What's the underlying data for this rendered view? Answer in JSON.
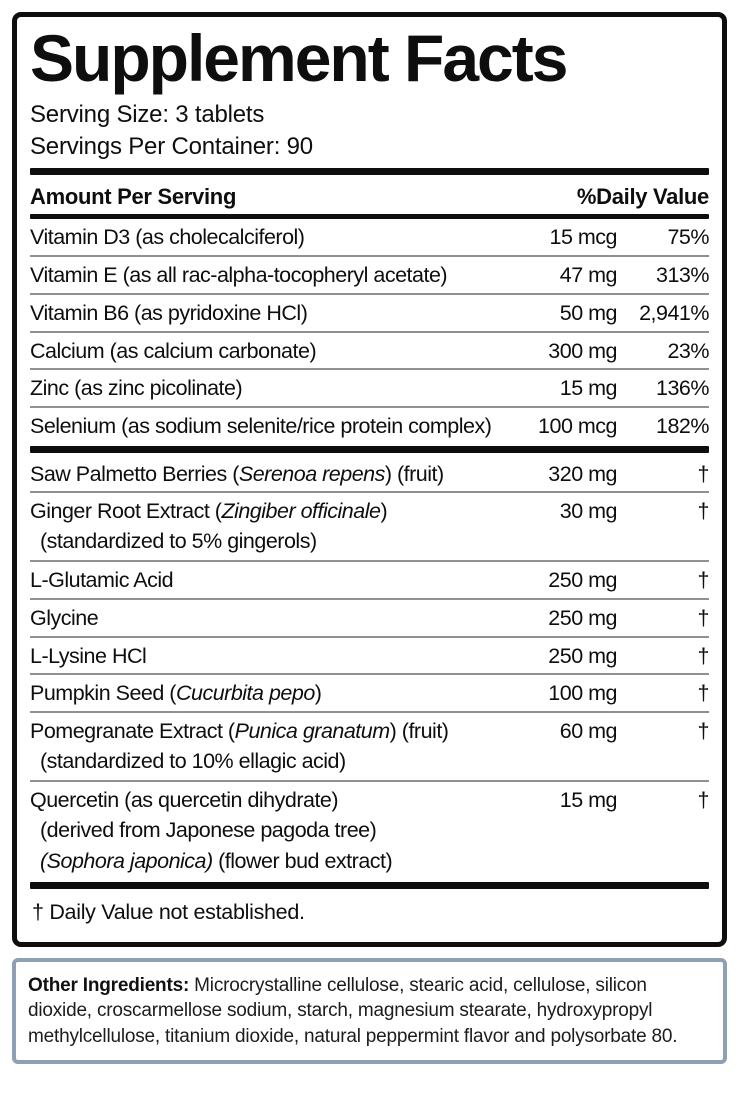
{
  "colors": {
    "ink": "#0e0e0e",
    "separator": "#7d7d7d",
    "footer_border": "#8fa0b4"
  },
  "label": {
    "title": "Supplement Facts",
    "serving_size": "Serving Size: 3 tablets",
    "servings_per_container": "Servings Per Container: 90",
    "columns": {
      "amount_header": "Amount Per Serving",
      "dv_header": "%Daily Value"
    },
    "rows": [
      {
        "name": [
          {
            "t": "Vitamin D3 (as cholecalciferol)"
          }
        ],
        "amount": "15 mcg",
        "dv": "75%",
        "subs": [],
        "sep_after": "thin"
      },
      {
        "name": [
          {
            "t": "Vitamin E (as all rac-alpha-tocopheryl acetate)"
          }
        ],
        "amount": "47 mg",
        "dv": "313%",
        "subs": [],
        "sep_after": "thin"
      },
      {
        "name": [
          {
            "t": "Vitamin B6 (as pyridoxine HCl)"
          }
        ],
        "amount": "50 mg",
        "dv": "2,941%",
        "subs": [],
        "sep_after": "thin"
      },
      {
        "name": [
          {
            "t": "Calcium (as calcium carbonate)"
          }
        ],
        "amount": "300 mg",
        "dv": "23%",
        "subs": [],
        "sep_after": "thin"
      },
      {
        "name": [
          {
            "t": "Zinc (as zinc picolinate)"
          }
        ],
        "amount": "15 mg",
        "dv": "136%",
        "subs": [],
        "sep_after": "thin"
      },
      {
        "name": [
          {
            "t": "Selenium (as sodium selenite/rice protein complex)"
          }
        ],
        "amount": "100 mcg",
        "dv": "182%",
        "subs": [],
        "sep_after": "thick"
      },
      {
        "name": [
          {
            "t": "Saw Palmetto Berries ("
          },
          {
            "t": "Serenoa repens",
            "i": true
          },
          {
            "t": ") (fruit)"
          }
        ],
        "amount": "320 mg",
        "dv": "†",
        "subs": [],
        "sep_after": "thin"
      },
      {
        "name": [
          {
            "t": "Ginger Root Extract ("
          },
          {
            "t": "Zingiber officinale",
            "i": true
          },
          {
            "t": ")"
          }
        ],
        "amount": "30 mg",
        "dv": "†",
        "subs": [
          [
            {
              "t": "(standardized to 5% gingerols)"
            }
          ]
        ],
        "sep_after": "thin"
      },
      {
        "name": [
          {
            "t": "L-Glutamic Acid"
          }
        ],
        "amount": "250 mg",
        "dv": "†",
        "subs": [],
        "sep_after": "thin"
      },
      {
        "name": [
          {
            "t": "Glycine"
          }
        ],
        "amount": "250 mg",
        "dv": "†",
        "subs": [],
        "sep_after": "thin"
      },
      {
        "name": [
          {
            "t": "L-Lysine HCl"
          }
        ],
        "amount": "250 mg",
        "dv": "†",
        "subs": [],
        "sep_after": "thin"
      },
      {
        "name": [
          {
            "t": "Pumpkin Seed ("
          },
          {
            "t": "Cucurbita pepo",
            "i": true
          },
          {
            "t": ")"
          }
        ],
        "amount": "100 mg",
        "dv": "†",
        "subs": [],
        "sep_after": "thin"
      },
      {
        "name": [
          {
            "t": "Pomegranate Extract ("
          },
          {
            "t": "Punica granatum",
            "i": true
          },
          {
            "t": ") (fruit)"
          }
        ],
        "amount": "60 mg",
        "dv": "†",
        "subs": [
          [
            {
              "t": "(standardized to 10% ellagic acid)"
            }
          ]
        ],
        "sep_after": "thin"
      },
      {
        "name": [
          {
            "t": "Quercetin (as quercetin dihydrate)"
          }
        ],
        "amount": "15 mg",
        "dv": "†",
        "subs": [
          [
            {
              "t": "(derived from Japonese pagoda tree)"
            }
          ],
          [
            {
              "t": "(Sophora japonica)",
              "i": true
            },
            {
              "t": " (flower bud extract)"
            }
          ]
        ],
        "sep_after": "thick"
      }
    ],
    "footnote": "† Daily Value not established.",
    "other_ingredients_label": "Other Ingredients:",
    "other_ingredients_text": " Microcrystalline cellulose, stearic acid, cellulose, silicon dioxide, croscarmellose sodium, starch, magnesium stearate, hydroxypropyl methylcellulose, titanium dioxide, natural peppermint flavor and polysorbate 80."
  }
}
